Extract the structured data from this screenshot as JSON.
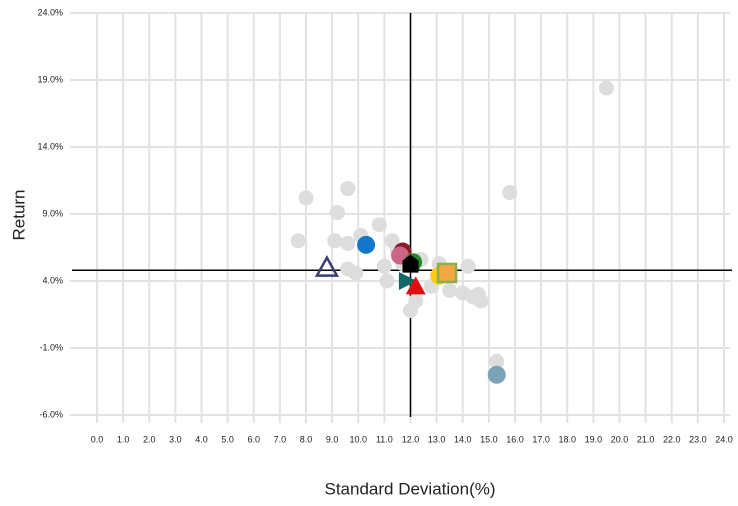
{
  "chart_data": {
    "type": "scatter",
    "xlabel": "Standard Deviation(%)",
    "ylabel": "Return",
    "xlim": [
      0,
      24
    ],
    "ylim": [
      -6,
      24
    ],
    "xticks": [
      {
        "value": 0,
        "label": "0.0"
      },
      {
        "value": 1,
        "label": "1.0"
      },
      {
        "value": 2,
        "label": "2.0"
      },
      {
        "value": 3,
        "label": "3.0"
      },
      {
        "value": 4,
        "label": "4.0"
      },
      {
        "value": 5,
        "label": "5.0"
      },
      {
        "value": 6,
        "label": "6.0"
      },
      {
        "value": 7,
        "label": "7.0"
      },
      {
        "value": 8,
        "label": "8.0"
      },
      {
        "value": 9,
        "label": "9.0"
      },
      {
        "value": 10,
        "label": "10.0"
      },
      {
        "value": 11,
        "label": "11.0"
      },
      {
        "value": 12,
        "label": "12.0"
      },
      {
        "value": 13,
        "label": "13.0"
      },
      {
        "value": 14,
        "label": "14.0"
      },
      {
        "value": 15,
        "label": "15.0"
      },
      {
        "value": 16,
        "label": "16.0"
      },
      {
        "value": 17,
        "label": "17.0"
      },
      {
        "value": 18,
        "label": "18.0"
      },
      {
        "value": 19,
        "label": "19.0"
      },
      {
        "value": 20,
        "label": "20.0"
      },
      {
        "value": 21,
        "label": "21.0"
      },
      {
        "value": 22,
        "label": "22.0"
      },
      {
        "value": 23,
        "label": "23.0"
      },
      {
        "value": 24,
        "label": "24.0"
      }
    ],
    "yticks": [
      {
        "value": -6,
        "label": "-6.0%"
      },
      {
        "value": -1,
        "label": "-1.0%"
      },
      {
        "value": 4,
        "label": "4.0%"
      },
      {
        "value": 9,
        "label": "9.0%"
      },
      {
        "value": 14,
        "label": "14.0%"
      },
      {
        "value": 19,
        "label": "19.0%"
      },
      {
        "value": 24,
        "label": "24.0%"
      }
    ],
    "grid": true,
    "crosshair": {
      "x": 12.0,
      "y": 4.8
    },
    "series": [
      {
        "color": "#dddddd",
        "marker": "circle",
        "x": [
          19.5,
          15.8,
          8.0,
          9.6,
          9.2,
          7.7,
          9.1,
          10.1,
          9.6,
          10.8,
          11.3,
          9.9,
          9.6,
          11.0,
          11.1,
          11.7,
          12.0,
          12.2,
          13.1,
          12.8,
          13.5,
          14.0,
          14.2,
          14.4,
          14.6,
          14.7,
          15.3,
          11.5,
          12.4
        ],
        "values": [
          18.4,
          10.6,
          10.2,
          10.9,
          9.1,
          7.0,
          7.0,
          7.4,
          6.8,
          8.2,
          7.0,
          4.6,
          4.9,
          5.1,
          4.0,
          5.3,
          1.8,
          2.5,
          5.3,
          3.6,
          3.3,
          3.1,
          5.1,
          2.8,
          3.0,
          2.5,
          -2.0,
          6.2,
          5.6
        ]
      },
      {
        "color": "#1177cc",
        "marker": "circle",
        "x": [
          10.3
        ],
        "values": [
          6.7
        ]
      },
      {
        "color": "#3b3f73",
        "marker": "open-triangle",
        "x": [
          8.8
        ],
        "values": [
          5.0
        ]
      },
      {
        "color": "#8b1a2b",
        "marker": "circle",
        "x": [
          11.7
        ],
        "values": [
          6.2
        ]
      },
      {
        "color": "#cc6688",
        "marker": "circle",
        "x": [
          11.6
        ],
        "values": [
          5.9
        ]
      },
      {
        "color": "#2a8a2a",
        "marker": "circle",
        "x": [
          12.1
        ],
        "values": [
          5.4
        ]
      },
      {
        "color": "#000000",
        "marker": "pentagon",
        "x": [
          12.0
        ],
        "values": [
          5.3
        ]
      },
      {
        "color": "#116666",
        "marker": "bowtie",
        "x": [
          11.9
        ],
        "values": [
          4.0
        ]
      },
      {
        "color": "#dd1111",
        "marker": "triangle",
        "x": [
          12.2
        ],
        "values": [
          3.6
        ]
      },
      {
        "color": "#ffcc11",
        "marker": "circle",
        "x": [
          13.1
        ],
        "values": [
          4.4
        ]
      },
      {
        "color": "#f4a742",
        "marker": "square",
        "x": [
          13.4
        ],
        "values": [
          4.6
        ]
      },
      {
        "color": "#7ba3b8",
        "marker": "circle",
        "x": [
          15.3
        ],
        "values": [
          -3.0
        ]
      }
    ]
  }
}
